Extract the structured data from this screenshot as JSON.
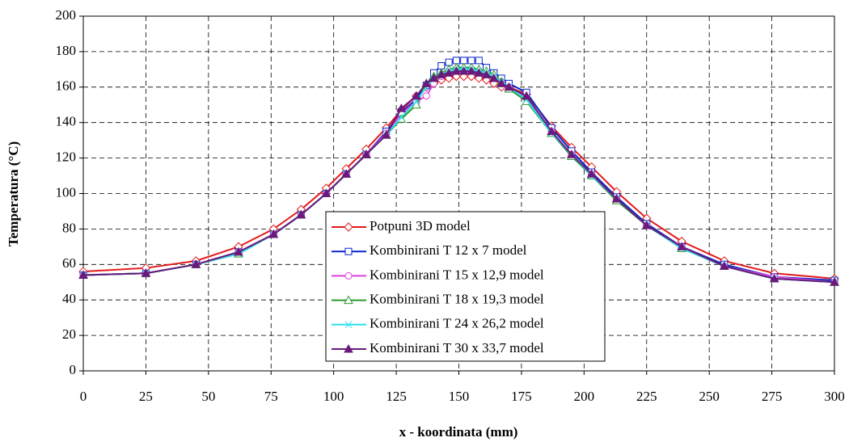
{
  "chart_data": {
    "type": "line",
    "xlabel": "x -  koordinata (mm)",
    "ylabel": "Temperatura (°C)",
    "x": [
      0,
      25,
      45,
      62,
      76,
      87,
      97,
      105,
      113,
      121,
      127,
      133,
      137,
      140,
      143,
      146,
      149,
      152,
      155,
      158,
      161,
      164,
      167,
      170,
      177,
      187,
      195,
      203,
      213,
      225,
      239,
      256,
      276,
      300
    ],
    "series": [
      {
        "name": "Potpuni 3D model",
        "color": "#e31a1c",
        "marker": "diamond",
        "values": [
          56,
          58,
          62,
          70,
          80,
          91,
          103,
          114,
          125,
          137,
          147,
          155,
          160,
          162,
          164,
          165,
          166,
          166,
          166,
          165,
          164,
          162,
          160,
          160,
          156,
          138,
          126,
          115,
          101,
          86,
          73,
          62,
          55,
          52
        ]
      },
      {
        "name": "Kombinirani T 12 x 7 model",
        "color": "#0b24c8",
        "marker": "square",
        "values": [
          54,
          55,
          60,
          67,
          77,
          88,
          100,
          111,
          122,
          135,
          146,
          153,
          161,
          168,
          172,
          174,
          175,
          175,
          175,
          175,
          171,
          168,
          165,
          162,
          157,
          137,
          124,
          112,
          98,
          83,
          70,
          60,
          53,
          51
        ]
      },
      {
        "name": "Kombinirani T 15 x 12,9 model",
        "color": "#e040e0",
        "marker": "circle",
        "values": [
          54,
          55,
          60,
          67,
          77,
          88,
          100,
          111,
          122,
          134,
          145,
          152,
          155,
          162,
          166,
          168,
          169,
          169,
          169,
          168,
          167,
          165,
          163,
          160,
          154,
          135,
          122,
          111,
          97,
          82,
          70,
          59,
          53,
          50
        ]
      },
      {
        "name": "Kombinirani T 18 x 19,3 model",
        "color": "#2a9a2a",
        "marker": "triangle",
        "values": [
          54,
          55,
          60,
          66,
          77,
          88,
          100,
          111,
          122,
          133,
          142,
          150,
          162,
          166,
          168,
          170,
          171,
          171,
          171,
          170,
          169,
          167,
          163,
          159,
          152,
          134,
          121,
          110,
          96,
          82,
          69,
          59,
          52,
          50
        ]
      },
      {
        "name": "Kombinirani T 24 x 26,2 model",
        "color": "#2ee0f0",
        "marker": "cross",
        "values": [
          54,
          55,
          60,
          66,
          77,
          88,
          100,
          111,
          122,
          133,
          143,
          152,
          160,
          165,
          167,
          169,
          170,
          170,
          170,
          169,
          168,
          166,
          163,
          160,
          153,
          134,
          122,
          110,
          97,
          82,
          69,
          59,
          52,
          50
        ]
      },
      {
        "name": "Kombinirani T 30 x 33,7 model",
        "color": "#6a1a7a",
        "marker": "filled-triangle",
        "values": [
          54,
          55,
          60,
          67,
          77,
          88,
          100,
          111,
          122,
          133,
          148,
          155,
          162,
          165,
          167,
          168,
          169,
          169,
          169,
          168,
          167,
          165,
          162,
          160,
          155,
          135,
          122,
          111,
          97,
          82,
          70,
          59,
          52,
          50
        ]
      }
    ],
    "xlim": [
      0,
      300
    ],
    "xticks": [
      0,
      25,
      50,
      75,
      100,
      125,
      150,
      175,
      200,
      225,
      250,
      275,
      300
    ],
    "ylim": [
      0,
      200
    ],
    "yticks": [
      0,
      20,
      40,
      60,
      80,
      100,
      120,
      140,
      160,
      180,
      200
    ],
    "grid": true,
    "legend": "lower center"
  }
}
